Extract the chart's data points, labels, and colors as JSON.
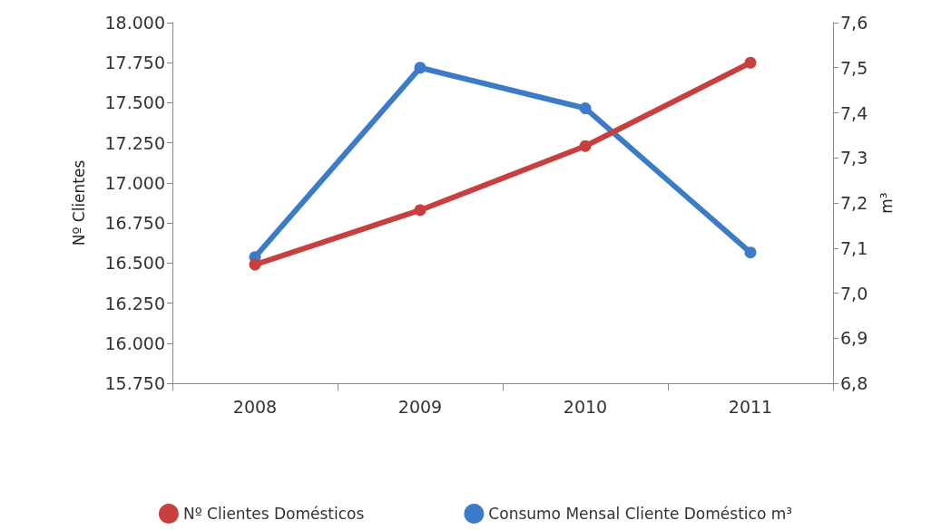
{
  "chart_data": {
    "type": "line",
    "ylabel": "Nº Clientes",
    "y2label": "m³",
    "categories": [
      "2008",
      "2009",
      "2010",
      "2011"
    ],
    "series": [
      {
        "name": "Nº Clientes Domésticos",
        "color": "#c8403d",
        "values": [
          16490,
          16830,
          17230,
          17750
        ]
      },
      {
        "name": "Consumo Mensal Cliente Doméstico m³",
        "color": "#3b7bc8",
        "values": [
          7.08,
          7.5,
          7.41,
          7.09
        ],
        "axis": "y2"
      }
    ],
    "ylim": [
      15750,
      18000
    ],
    "yticks": [
      {
        "value": 15750,
        "label": "15.750"
      },
      {
        "value": 16000,
        "label": "16.000"
      },
      {
        "value": 16250,
        "label": "16.250"
      },
      {
        "value": 16500,
        "label": "16.500"
      },
      {
        "value": 16750,
        "label": "16.750"
      },
      {
        "value": 17000,
        "label": "17.000"
      },
      {
        "value": 17250,
        "label": "17.250"
      },
      {
        "value": 17500,
        "label": "17.500"
      },
      {
        "value": 17750,
        "label": "17.750"
      },
      {
        "value": 18000,
        "label": "18.000"
      }
    ],
    "y2lim": [
      6.8,
      7.6
    ],
    "y2ticks": [
      {
        "value": 6.8,
        "label": "6,8"
      },
      {
        "value": 6.9,
        "label": "6,9"
      },
      {
        "value": 7,
        "label": "7,0"
      },
      {
        "value": 7.1,
        "label": "7,1"
      },
      {
        "value": 7.2,
        "label": "7,2"
      },
      {
        "value": 7.3,
        "label": "7,3"
      },
      {
        "value": 7.4,
        "label": "7,4"
      },
      {
        "value": 7.5,
        "label": "7,5"
      },
      {
        "value": 7.6,
        "label": "7,6"
      }
    ],
    "grid": false,
    "legend": "bottom",
    "marker": "circle",
    "line_style": "solid"
  }
}
